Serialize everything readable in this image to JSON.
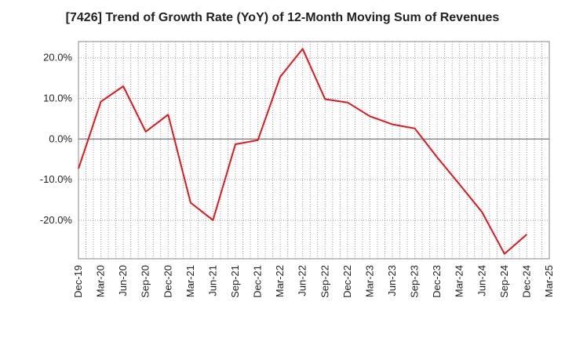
{
  "chart_data": {
    "type": "line",
    "title": "[7426]  Trend of Growth Rate (YoY) of 12-Month Moving Sum of Revenues",
    "xlabel": "",
    "ylabel": "",
    "categories": [
      "Dec-19",
      "Mar-20",
      "Jun-20",
      "Sep-20",
      "Dec-20",
      "Mar-21",
      "Jun-21",
      "Sep-21",
      "Dec-21",
      "Mar-22",
      "Jun-22",
      "Sep-22",
      "Dec-22",
      "Mar-23",
      "Jun-23",
      "Sep-23",
      "Dec-23",
      "Mar-24",
      "Jun-24",
      "Sep-24",
      "Dec-24",
      "Mar-25"
    ],
    "series": [
      {
        "color": "#e8141b",
        "values": [
          -7.3,
          9.2,
          13.0,
          1.8,
          6.0,
          -15.7,
          -20.0,
          -1.3,
          -0.3,
          15.3,
          22.2,
          9.8,
          9.0,
          5.6,
          3.6,
          2.6,
          -4.5,
          -11.2,
          -18.0,
          -28.3,
          -23.5,
          null
        ]
      }
    ],
    "yticks": [
      -20,
      -10,
      0,
      10,
      20
    ],
    "ytick_labels": [
      "-20.0%",
      "-10.0%",
      "0.0%",
      "10.0%",
      "20.0%"
    ],
    "ylim": [
      -29.5,
      24.0
    ],
    "grid": true,
    "zero_line": true,
    "legend": "none",
    "colors": {
      "line": "#e8141b",
      "grid": "#999999",
      "axis": "#888888",
      "zero": "#555555"
    }
  }
}
